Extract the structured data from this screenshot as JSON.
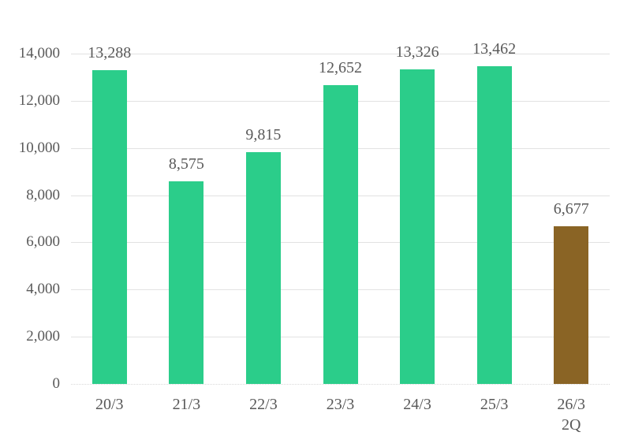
{
  "chart_data": {
    "type": "bar",
    "title": "",
    "xlabel": "",
    "ylabel": "",
    "categories": [
      "20/3",
      "21/3",
      "22/3",
      "23/3",
      "24/3",
      "25/3",
      "26/3"
    ],
    "category_sublabels": [
      "",
      "",
      "",
      "",
      "",
      "",
      "2Q"
    ],
    "values": [
      13288,
      8575,
      9815,
      12652,
      13326,
      13462,
      6677
    ],
    "value_labels": [
      "13,288",
      "8,575",
      "9,815",
      "12,652",
      "13,326",
      "13,462",
      "6,677"
    ],
    "bar_colors": [
      "#2BCD8A",
      "#2BCD8A",
      "#2BCD8A",
      "#2BCD8A",
      "#2BCD8A",
      "#2BCD8A",
      "#8A6425"
    ],
    "ylim": [
      0,
      14000
    ],
    "y_ticks": [
      0,
      2000,
      4000,
      6000,
      8000,
      10000,
      12000,
      14000
    ],
    "y_tick_labels": [
      "0",
      "2,000",
      "4,000",
      "6,000",
      "8,000",
      "10,000",
      "12,000",
      "14,000"
    ],
    "grid": true,
    "legend": false
  },
  "colors": {
    "bar_green": "#2BCD8A",
    "bar_brown": "#8A6425",
    "text": "#595959",
    "gridline": "#E2E2E2",
    "baseline": "#D9D9D9"
  }
}
